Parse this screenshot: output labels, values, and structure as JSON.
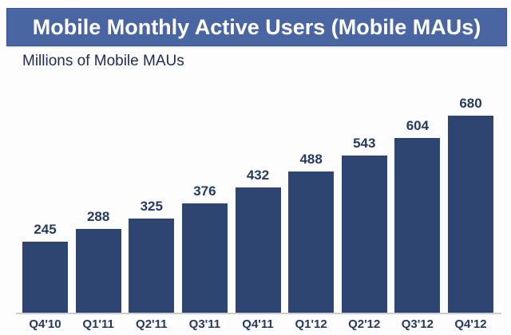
{
  "header": {
    "title": "Mobile Monthly Active Users (Mobile MAUs)",
    "banner_color": "#4a66a2",
    "text_color": "#ffffff"
  },
  "subtitle": "Millions of Mobile MAUs",
  "colors": {
    "bar": "#2e4571",
    "label_text": "#26395f",
    "baseline": "#c9ced6"
  },
  "chart_data": {
    "type": "bar",
    "title": "Mobile Monthly Active Users (Mobile MAUs)",
    "ylabel": "Millions of Mobile MAUs",
    "xlabel": "",
    "categories": [
      "Q4'10",
      "Q1'11",
      "Q2'11",
      "Q3'11",
      "Q4'11",
      "Q1'12",
      "Q2'12",
      "Q3'12",
      "Q4'12"
    ],
    "values": [
      245,
      288,
      325,
      376,
      432,
      488,
      543,
      604,
      680
    ],
    "ylim": [
      0,
      680
    ],
    "grid": false,
    "legend": false,
    "data_labels": true
  }
}
